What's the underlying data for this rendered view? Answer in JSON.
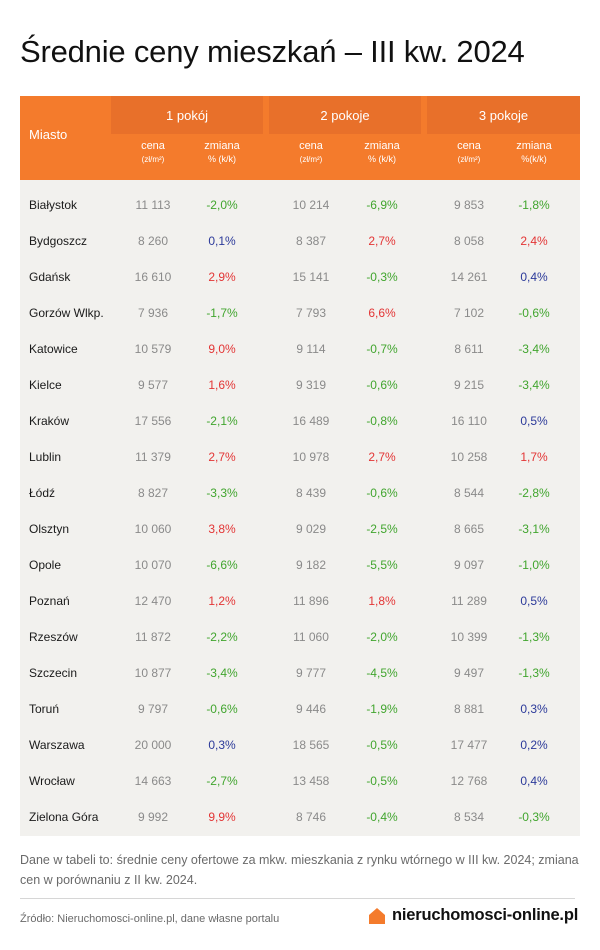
{
  "title": "Średnie ceny mieszkań – III kw. 2024",
  "header": {
    "city_label": "Miasto",
    "groups": [
      "1 pokój",
      "2 pokoje",
      "3 pokoje"
    ],
    "price_label": "cena",
    "price_unit": "(zł/m²)",
    "change_label": "zmiana",
    "change_unit_a": "% (k/k)",
    "change_unit_b": "%(k/k)"
  },
  "rows": [
    {
      "city": "Białystok",
      "p1": "11 113",
      "c1": "-2,0%",
      "p2": "10 214",
      "c2": "-6,9%",
      "p3": "9 853",
      "c3": "-1,8%"
    },
    {
      "city": "Bydgoszcz",
      "p1": "8 260",
      "c1": "0,1%",
      "p2": "8 387",
      "c2": "2,7%",
      "p3": "8 058",
      "c3": "2,4%"
    },
    {
      "city": "Gdańsk",
      "p1": "16 610",
      "c1": "2,9%",
      "p2": "15 141",
      "c2": "-0,3%",
      "p3": "14 261",
      "c3": "0,4%"
    },
    {
      "city": "Gorzów Wlkp.",
      "p1": "7 936",
      "c1": "-1,7%",
      "p2": "7 793",
      "c2": "6,6%",
      "p3": "7 102",
      "c3": "-0,6%"
    },
    {
      "city": "Katowice",
      "p1": "10 579",
      "c1": "9,0%",
      "p2": "9 114",
      "c2": "-0,7%",
      "p3": "8 611",
      "c3": "-3,4%"
    },
    {
      "city": "Kielce",
      "p1": "9 577",
      "c1": "1,6%",
      "p2": "9 319",
      "c2": "-0,6%",
      "p3": "9 215",
      "c3": "-3,4%"
    },
    {
      "city": "Kraków",
      "p1": "17 556",
      "c1": "-2,1%",
      "p2": "16 489",
      "c2": "-0,8%",
      "p3": "16 110",
      "c3": "0,5%"
    },
    {
      "city": "Lublin",
      "p1": "11 379",
      "c1": "2,7%",
      "p2": "10 978",
      "c2": "2,7%",
      "p3": "10 258",
      "c3": "1,7%"
    },
    {
      "city": "Łódź",
      "p1": "8 827",
      "c1": "-3,3%",
      "p2": "8 439",
      "c2": "-0,6%",
      "p3": "8 544",
      "c3": "-2,8%"
    },
    {
      "city": "Olsztyn",
      "p1": "10 060",
      "c1": "3,8%",
      "p2": "9 029",
      "c2": "-2,5%",
      "p3": "8 665",
      "c3": "-3,1%"
    },
    {
      "city": "Opole",
      "p1": "10 070",
      "c1": "-6,6%",
      "p2": "9 182",
      "c2": "-5,5%",
      "p3": "9 097",
      "c3": "-1,0%"
    },
    {
      "city": "Poznań",
      "p1": "12 470",
      "c1": "1,2%",
      "p2": "11 896",
      "c2": "1,8%",
      "p3": "11 289",
      "c3": "0,5%"
    },
    {
      "city": "Rzeszów",
      "p1": "11 872",
      "c1": "-2,2%",
      "p2": "11 060",
      "c2": "-2,0%",
      "p3": "10 399",
      "c3": "-1,3%"
    },
    {
      "city": "Szczecin",
      "p1": "10 877",
      "c1": "-3,4%",
      "p2": "9 777",
      "c2": "-4,5%",
      "p3": "9 497",
      "c3": "-1,3%"
    },
    {
      "city": "Toruń",
      "p1": "9 797",
      "c1": "-0,6%",
      "p2": "9 446",
      "c2": "-1,9%",
      "p3": "8 881",
      "c3": "0,3%"
    },
    {
      "city": "Warszawa",
      "p1": "20 000",
      "c1": "0,3%",
      "p2": "18 565",
      "c2": "-0,5%",
      "p3": "17 477",
      "c3": "0,2%"
    },
    {
      "city": "Wrocław",
      "p1": "14 663",
      "c1": "-2,7%",
      "p2": "13 458",
      "c2": "-0,5%",
      "p3": "12 768",
      "c3": "0,4%"
    },
    {
      "city": "Zielona Góra",
      "p1": "9 992",
      "c1": "9,9%",
      "p2": "8 746",
      "c2": "-0,4%",
      "p3": "8 534",
      "c3": "-0,3%"
    }
  ],
  "note": "Dane w tabeli to: średnie ceny ofertowe za mkw. mieszkania z rynku wtórnego w III kw. 2024; zmiana cen w porównaniu z II kw. 2024.",
  "source": "Źródło: Nieruchomosci-online.pl, dane własne portalu",
  "brand": "nieruchomosci-online.pl",
  "colors": {
    "header": "#f47b2c",
    "header_group": "#e8702a",
    "negative": "#41a52e",
    "positive": "#e33535",
    "positive_small": "#2c3a9a",
    "brand_orange": "#f47b2c"
  }
}
